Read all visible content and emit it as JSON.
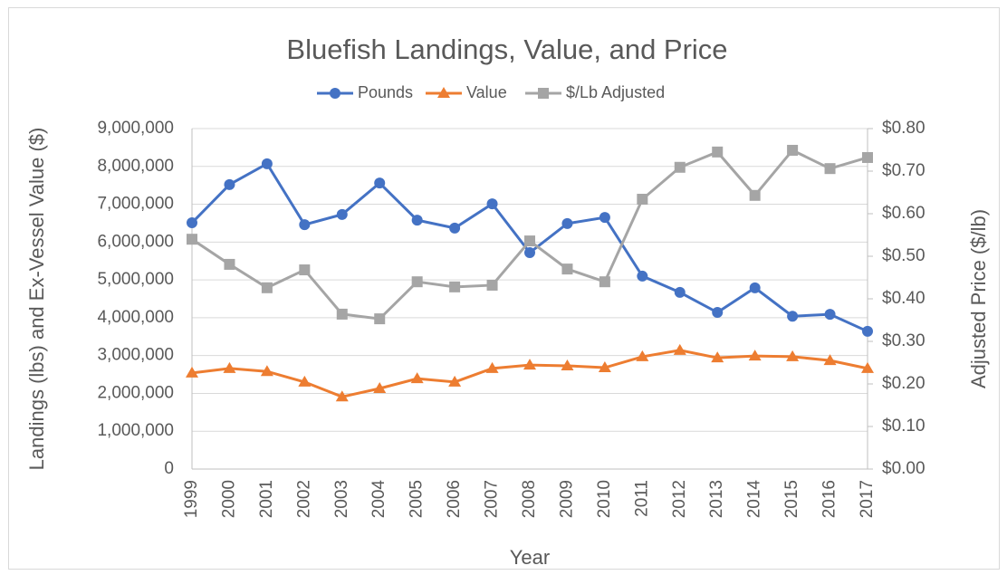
{
  "chart_data": {
    "type": "line",
    "title": "Bluefish Landings, Value, and Price",
    "x_label": "Year",
    "y_label": "Landings (lbs) and Ex-Vessel Value ($)",
    "y2_label": "Adjusted Price ($/lb)",
    "categories": [
      "1999",
      "2000",
      "2001",
      "2002",
      "2003",
      "2004",
      "2005",
      "2006",
      "2007",
      "2008",
      "2009",
      "2010",
      "2011",
      "2012",
      "2013",
      "2014",
      "2015",
      "2016",
      "2017"
    ],
    "series": [
      {
        "name": "Pounds",
        "color": "#4472c4",
        "marker": "circle",
        "values": [
          6510000,
          7520000,
          8070000,
          6460000,
          6730000,
          7560000,
          6580000,
          6370000,
          7010000,
          5720000,
          6490000,
          6650000,
          5100000,
          4670000,
          4140000,
          4790000,
          4040000,
          4090000,
          3640000
        ]
      },
      {
        "name": "Value",
        "color": "#ed7d31",
        "marker": "triangle",
        "values": [
          2540000,
          2660000,
          2580000,
          2300000,
          1910000,
          2130000,
          2390000,
          2300000,
          2660000,
          2750000,
          2730000,
          2680000,
          2970000,
          3140000,
          2940000,
          2990000,
          2970000,
          2870000,
          2660000
        ]
      },
      {
        "name": "$/Lb Adjusted",
        "color": "#a5a5a5",
        "marker": "square",
        "axis": "y2",
        "values": [
          0.54,
          0.481,
          0.426,
          0.468,
          0.364,
          0.353,
          0.44,
          0.428,
          0.432,
          0.536,
          0.47,
          0.44,
          0.634,
          0.709,
          0.745,
          0.643,
          0.749,
          0.706,
          0.732
        ]
      }
    ],
    "ylim": [
      0,
      9000000
    ],
    "yticks": [
      0,
      {
        "value": 1000000,
        "label": "1,000,000"
      },
      {
        "value": 2000000,
        "label": "2,000,000"
      },
      {
        "value": 3000000,
        "label": "3,000,000"
      },
      {
        "value": 4000000,
        "label": "4,000,000"
      },
      {
        "value": 5000000,
        "label": "5,000,000"
      },
      {
        "value": 6000000,
        "label": "6,000,000"
      },
      {
        "value": 7000000,
        "label": "7,000,000"
      },
      {
        "value": 8000000,
        "label": "8,000,000"
      },
      {
        "value": 9000000,
        "label": "9,000,000"
      }
    ],
    "y2lim": [
      0,
      0.8
    ],
    "y2ticks": [
      {
        "value": 0,
        "label": "$0.00"
      },
      {
        "value": 0.1,
        "label": "$0.10"
      },
      {
        "value": 0.2,
        "label": "$0.20"
      },
      {
        "value": 0.3,
        "label": "$0.30"
      },
      {
        "value": 0.4,
        "label": "$0.40"
      },
      {
        "value": 0.5,
        "label": "$0.50"
      },
      {
        "value": 0.6,
        "label": "$0.60"
      },
      {
        "value": 0.7,
        "label": "$0.70"
      },
      {
        "value": 0.8,
        "label": "$0.80"
      }
    ],
    "grid": true,
    "legend": "top"
  }
}
